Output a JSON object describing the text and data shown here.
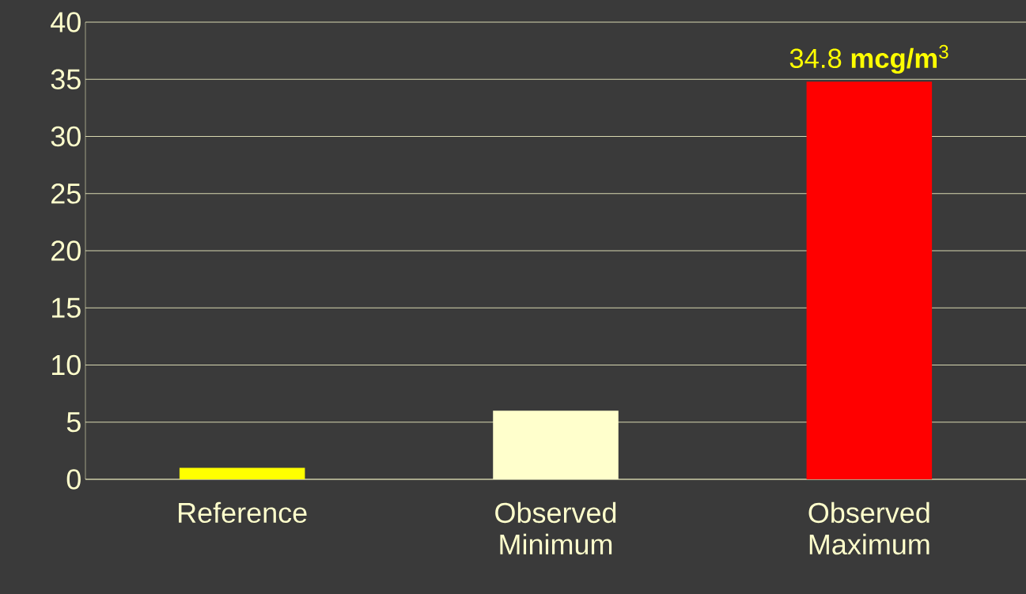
{
  "chart_data": {
    "type": "bar",
    "categories": [
      "Reference",
      "Observed Minimum",
      "Observed Maximum"
    ],
    "values": [
      1,
      6,
      34.8
    ],
    "colors": [
      "#ffff00",
      "#ffffcc",
      "#ff0000"
    ],
    "value_labels": [
      null,
      null,
      "34.8 **mcg/m**$^{3}$"
    ],
    "ylim": [
      0,
      40
    ],
    "yticks": [
      0,
      5,
      10,
      15,
      20,
      25,
      30,
      35,
      40
    ],
    "grid": "y"
  }
}
